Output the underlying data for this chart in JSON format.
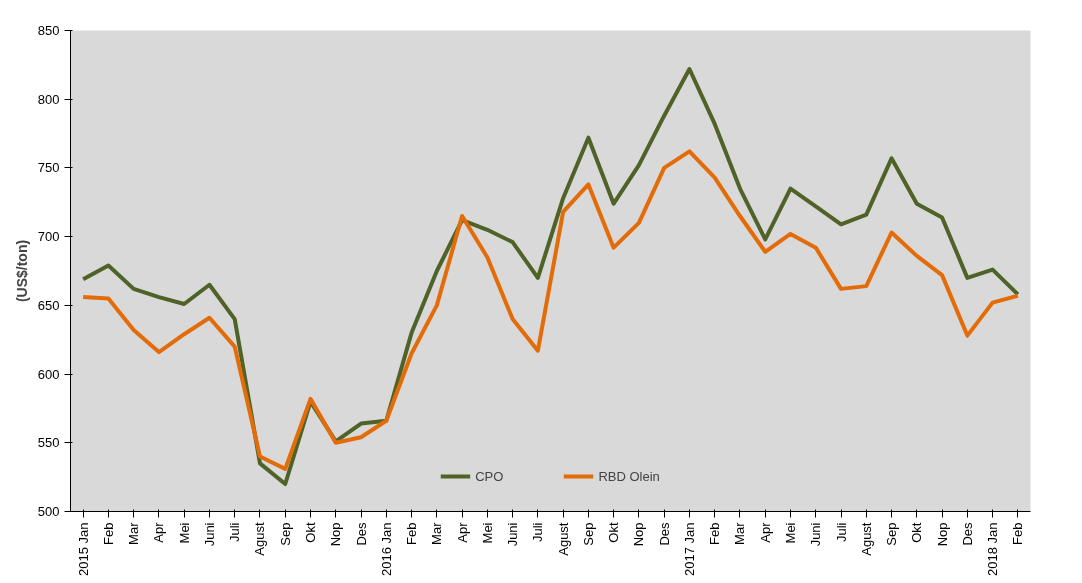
{
  "chart_data": {
    "type": "line",
    "ylabel": "(US$/ton)",
    "categories": [
      "2015 Jan",
      "Feb",
      "Mar",
      "Apr",
      "Mei",
      "Juni",
      "Juli",
      "Agust",
      "Sep",
      "Okt",
      "Nop",
      "Des",
      "2016 Jan",
      "Feb",
      "Mar",
      "Apr",
      "Mei",
      "Juni",
      "Juli",
      "Agust",
      "Sep",
      "Okt",
      "Nop",
      "Des",
      "2017 Jan",
      "Feb",
      "Mar",
      "Apr",
      "Mei",
      "Juni",
      "Juli",
      "Agust",
      "Sep",
      "Okt",
      "Nop",
      "Des",
      "2018 Jan",
      "Feb"
    ],
    "series": [
      {
        "name": "CPO",
        "color": "#4f6228",
        "values": [
          669,
          679,
          662,
          656,
          651,
          665,
          640,
          535,
          520,
          580,
          551,
          564,
          566,
          630,
          675,
          712,
          705,
          696,
          670,
          728,
          772,
          724,
          752,
          788,
          822,
          782,
          735,
          698,
          735,
          722,
          709,
          716,
          757,
          724,
          714,
          670,
          676,
          658
        ]
      },
      {
        "name": "RBD Olein",
        "color": "#e36c09",
        "values": [
          656,
          655,
          632,
          616,
          629,
          641,
          620,
          540,
          531,
          582,
          550,
          554,
          566,
          615,
          650,
          715,
          685,
          640,
          617,
          718,
          738,
          692,
          710,
          750,
          762,
          743,
          715,
          689,
          702,
          692,
          662,
          664,
          703,
          686,
          672,
          628,
          652,
          657
        ]
      }
    ],
    "ylim": [
      500,
      850
    ],
    "yticks": [
      500,
      550,
      600,
      650,
      700,
      750,
      800,
      850
    ],
    "grid": false,
    "legend": "bottom",
    "line_style": "solid"
  }
}
